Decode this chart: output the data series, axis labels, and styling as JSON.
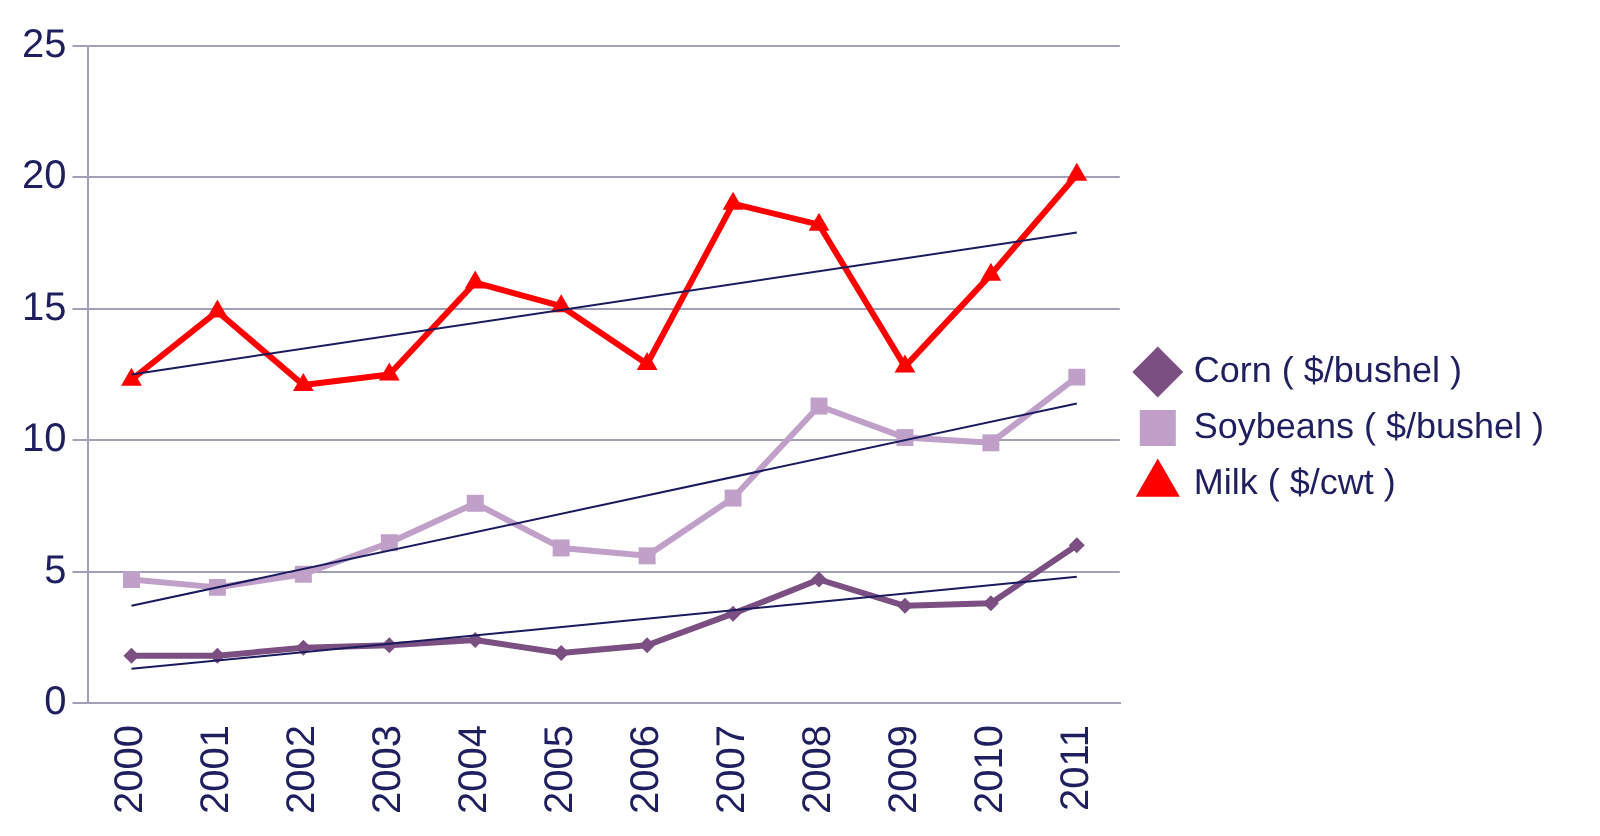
{
  "chart_data": {
    "type": "line",
    "categories": [
      "2000",
      "2001",
      "2002",
      "2003",
      "2004",
      "2005",
      "2006",
      "2007",
      "2008",
      "2009",
      "2010",
      "2011"
    ],
    "series": [
      {
        "name": "Corn ( $/bushel )",
        "color": "#7b4f82",
        "marker": "diamond",
        "values": [
          1.8,
          1.8,
          2.1,
          2.2,
          2.4,
          1.9,
          2.2,
          3.4,
          4.7,
          3.7,
          3.8,
          6.0
        ]
      },
      {
        "name": "Soybeans ( $/bushel )",
        "color": "#c0a0c8",
        "marker": "square",
        "values": [
          4.7,
          4.4,
          4.9,
          6.1,
          7.6,
          5.9,
          5.6,
          7.8,
          11.3,
          10.1,
          9.9,
          12.4
        ]
      },
      {
        "name": "Milk ( $/cwt )",
        "color": "#ff0000",
        "marker": "triangle",
        "values": [
          12.3,
          14.9,
          12.1,
          12.5,
          16.0,
          15.1,
          12.9,
          19.0,
          18.2,
          12.8,
          16.3,
          20.1
        ]
      },
      {
        "type": "line",
        "color": "#1a1a5e",
        "marker": "none",
        "values": [
          1.3,
          null,
          null,
          null,
          null,
          null,
          null,
          null,
          null,
          null,
          null,
          4.8
        ]
      },
      {
        "type": "line",
        "color": "#1a1a5e",
        "marker": "none",
        "values": [
          3.7,
          null,
          null,
          null,
          null,
          null,
          null,
          null,
          null,
          null,
          null,
          11.4
        ]
      },
      {
        "type": "line",
        "color": "#1a1a5e",
        "marker": "none",
        "values": [
          12.5,
          null,
          null,
          null,
          null,
          null,
          null,
          null,
          null,
          null,
          null,
          17.9
        ]
      }
    ],
    "ylim": [
      0,
      25
    ],
    "yticks": [
      0,
      5,
      10,
      15,
      20,
      25
    ],
    "grid": "y",
    "legend": "right"
  }
}
